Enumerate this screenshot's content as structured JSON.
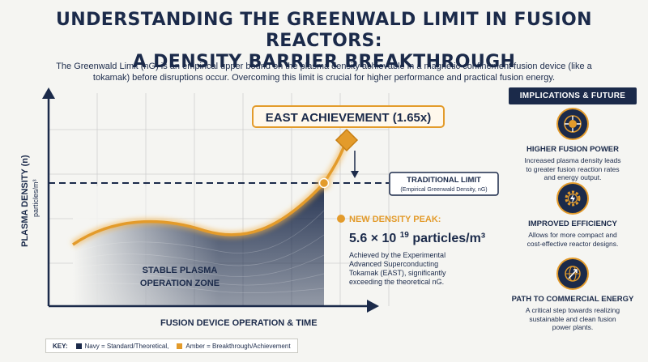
{
  "title_line1": "UNDERSTANDING THE GREENWALD LIMIT IN FUSION REACTORS:",
  "title_line2": "A DENSITY BARRIER BREAKTHROUGH",
  "intro_line1": "The Greenwald Limit (nG) is an empirical upper bound on the plasma density achievable in a magnetic confinement fusion device (like a",
  "intro_line2": "tokamak) before disruptions occur. Overcoming this limit is crucial for higher performance and practical fusion energy.",
  "diagram": {
    "y_axis_label": "PLASMA DENSITY (n)",
    "y_axis_unit": "particles/m³",
    "x_axis_label": "FUSION DEVICE OPERATION & TIME",
    "achievement_label": "EAST ACHIEVEMENT (1.65x)",
    "limit_title": "TRADITIONAL LIMIT",
    "limit_sub": "(Empirical Greenwald Density, nG)",
    "zone_line1": "STABLE PLASMA",
    "zone_line2": "OPERATION ZONE",
    "peak_title": "NEW DENSITY PEAK:",
    "peak_value": "5.6 × 10",
    "peak_exp": "19",
    "peak_unit": " particles/m³",
    "peak_desc": [
      "Achieved by the Experimental",
      "Advanced Superconducting",
      "Tokamak (EAST), significantly",
      "exceeding the theoretical nG."
    ],
    "colors": {
      "navy": "#1b2a4a",
      "amber": "#e39b2b"
    }
  },
  "implications": {
    "heading": "IMPLICATIONS & FUTURE",
    "items": [
      {
        "title": "HIGHER FUSION POWER",
        "icon": "reactor-core-icon",
        "desc": [
          "Increased plasma density leads",
          "to greater fusion reaction rates",
          "and energy output."
        ]
      },
      {
        "title": "IMPROVED EFFICIENCY",
        "icon": "gear-lightning-icon",
        "desc": [
          "Allows for more compact and",
          "cost-effective reactor designs."
        ]
      },
      {
        "title": "PATH TO COMMERCIAL ENERGY",
        "icon": "globe-arrow-icon",
        "desc": [
          "A critical step towards realizing",
          "sustainable and clean fusion",
          "power plants."
        ]
      }
    ]
  },
  "key": {
    "label": "KEY:",
    "navy_text": "Navy = Standard/Theoretical,",
    "amber_text": "Amber = Breakthrough/Achievement"
  }
}
